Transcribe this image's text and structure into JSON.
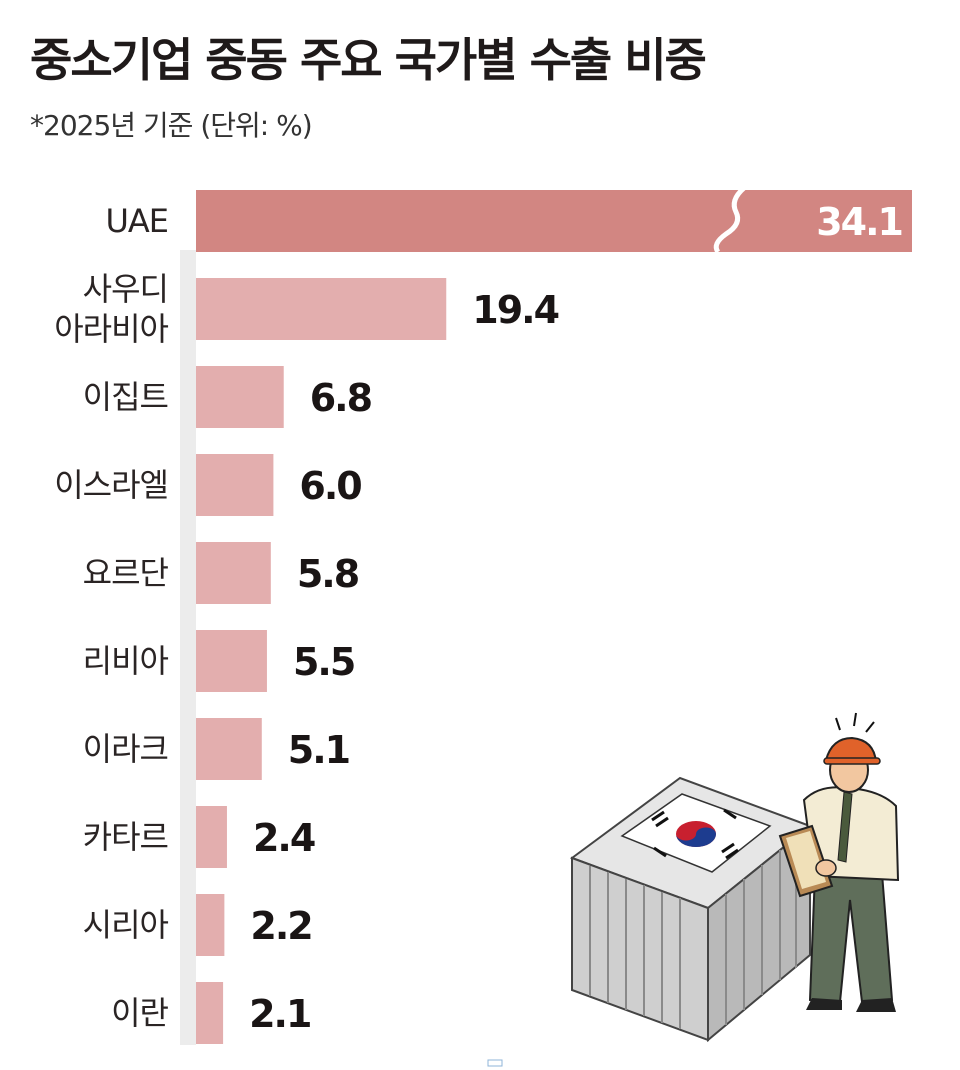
{
  "header": {
    "title": "중소기업 중동 주요 국가별 수출 비중",
    "subtitle": "*2025년 기준 (단위: %)"
  },
  "colors": {
    "highlight_bar": "#d28682",
    "bar": "#e3aeae",
    "axis_band": "#ececec"
  },
  "illustration": {
    "icons": [
      "shipping-container-icon",
      "korean-flag-icon",
      "worker-with-clipboard-icon"
    ]
  },
  "chart_data": {
    "type": "bar",
    "orientation": "horizontal",
    "title": "중소기업 중동 주요 국가별 수출 비중",
    "subtitle": "*2025년 기준 (단위: %)",
    "unit": "%",
    "categories": [
      "UAE",
      "사우디\n아라비아",
      "이집트",
      "이스라엘",
      "요르단",
      "리비아",
      "이라크",
      "카타르",
      "시리아",
      "이란"
    ],
    "values": [
      34.1,
      19.4,
      6.8,
      6.0,
      5.8,
      5.5,
      5.1,
      2.4,
      2.2,
      2.1
    ],
    "value_labels": [
      "34.1",
      "19.4",
      "6.8",
      "6.0",
      "5.8",
      "5.5",
      "5.1",
      "2.4",
      "2.2",
      "2.1"
    ],
    "highlight_index": 0,
    "axis_break_on_first_bar": true,
    "grid": false,
    "legend": "none"
  }
}
